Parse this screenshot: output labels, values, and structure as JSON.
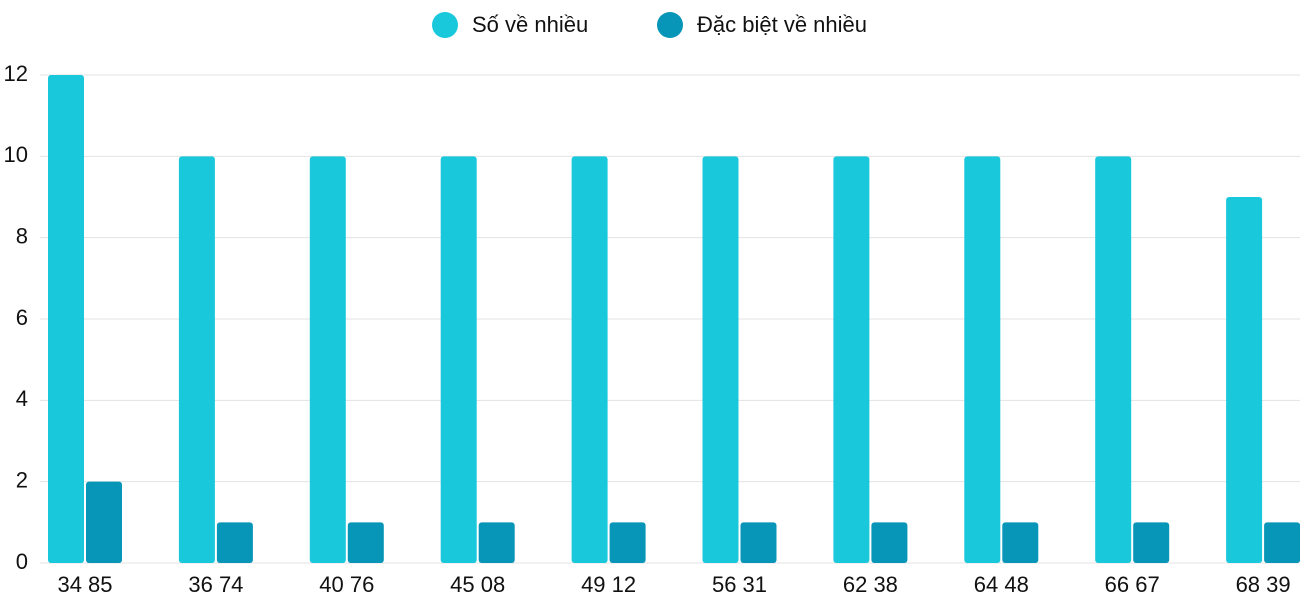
{
  "chart_data": {
    "type": "bar",
    "categories": [
      "34 85",
      "36 74",
      "40 76",
      "45 08",
      "49 12",
      "56 31",
      "62 38",
      "64 48",
      "66 67",
      "68 39"
    ],
    "series": [
      {
        "name": "Số về nhiều",
        "color": "#1ac8db",
        "values": [
          12,
          10,
          10,
          10,
          10,
          10,
          10,
          10,
          10,
          9
        ]
      },
      {
        "name": "Đặc biệt về nhiều",
        "color": "#0795b8",
        "values": [
          2,
          1,
          1,
          1,
          1,
          1,
          1,
          1,
          1,
          1
        ]
      }
    ],
    "ylim": [
      0,
      12
    ],
    "yticks": [
      0,
      2,
      4,
      6,
      8,
      10,
      12
    ],
    "grid": true,
    "legend": "top"
  }
}
